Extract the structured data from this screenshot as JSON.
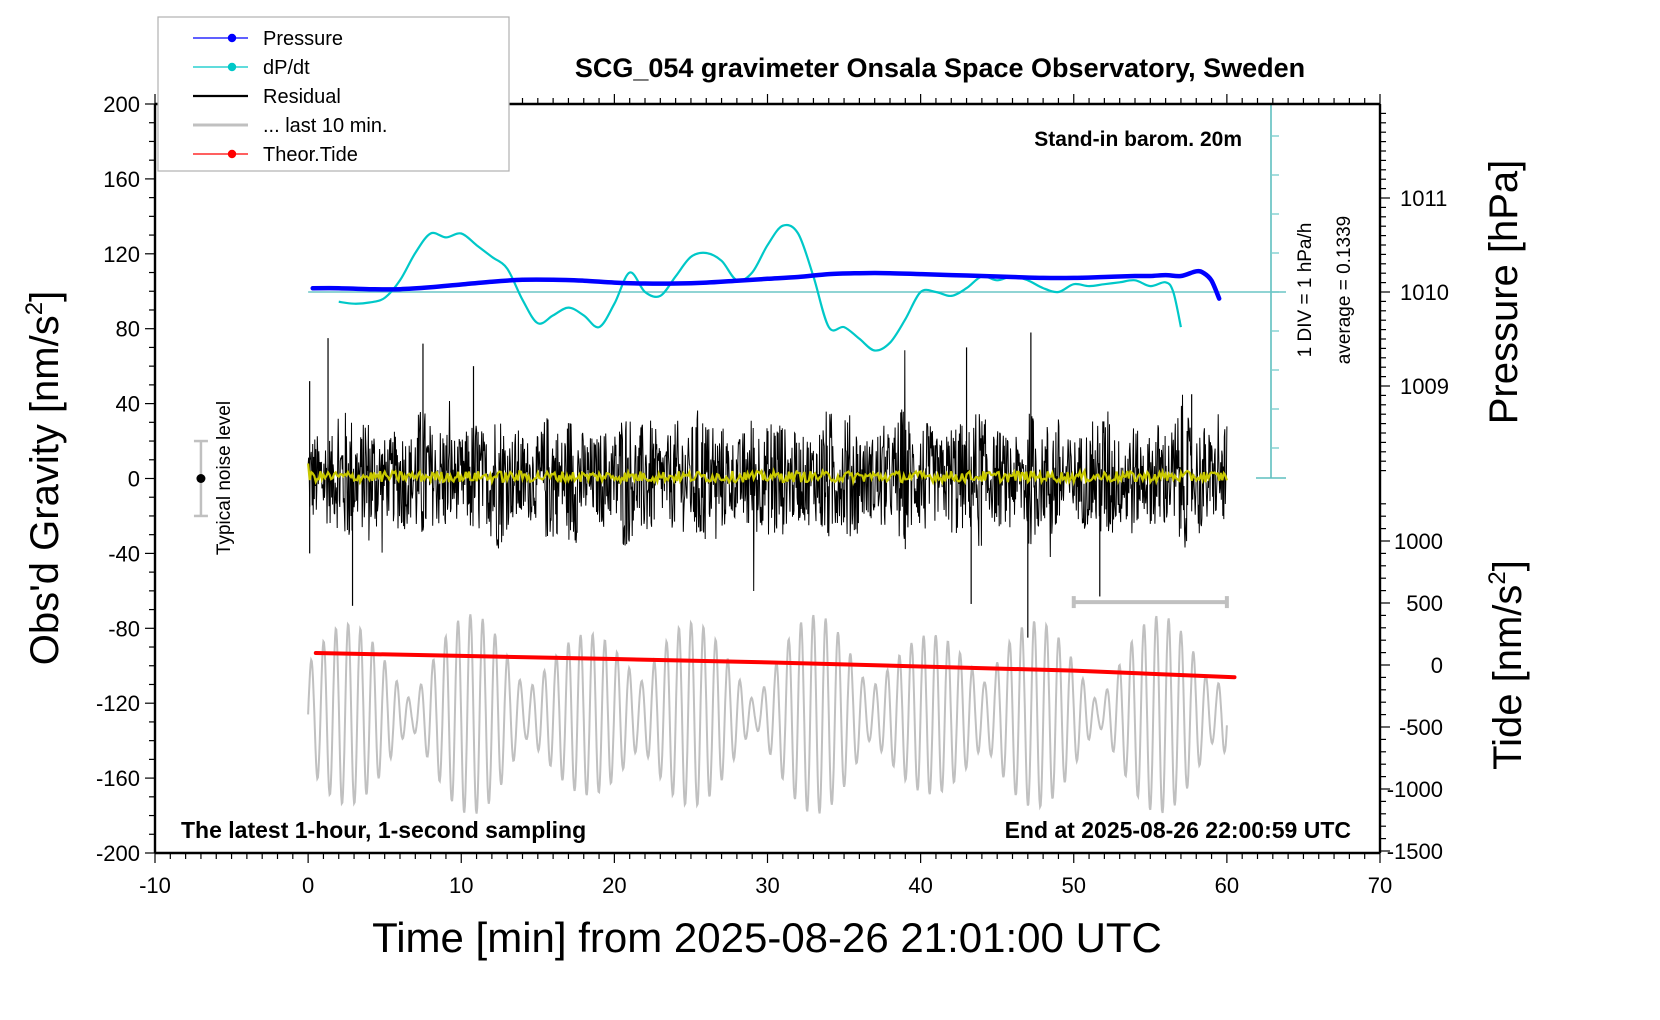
{
  "chart_data": {
    "type": "line",
    "title": "SCG_054 gravimeter Onsala Space Observatory, Sweden",
    "xlabel": "Time [min] from 2025-08-26 21:01:00 UTC",
    "ylabel_left": "Obs'd Gravity [nm/s",
    "ylabel_left_sup": "2",
    "ylabel_right_pressure": "Pressure [hPa]",
    "ylabel_right_tide": "Tide [nm/s",
    "ylabel_right_tide_sup": "2",
    "xlim": [
      -10,
      70
    ],
    "ylim_left": [
      -200,
      200
    ],
    "pressure_axis_range": [
      1008.2,
      1011.9
    ],
    "tide_axis_range": [
      -1500,
      1500
    ],
    "x_ticks": [
      -10,
      0,
      10,
      20,
      30,
      40,
      50,
      60,
      70
    ],
    "x_tick_labels": [
      "-10",
      "0",
      "10",
      "20",
      "30",
      "40",
      "50",
      "60",
      "70"
    ],
    "y_left_ticks": [
      200,
      160,
      120,
      80,
      40,
      0,
      -40,
      -80,
      -120,
      -160,
      -200
    ],
    "y_left_tick_labels": [
      "200",
      "160",
      "120",
      "80",
      "40",
      "0",
      "-40",
      "-80",
      "-120",
      "-160",
      "-200"
    ],
    "pressure_ticks": [
      1011,
      1010,
      1009
    ],
    "pressure_tick_labels": [
      "1011",
      "1010",
      "1009"
    ],
    "tide_ticks": [
      1000,
      500,
      0,
      -500,
      -1000,
      -1500
    ],
    "tide_tick_labels": [
      "1000",
      "500",
      "0",
      "-500",
      "-1000",
      "-1500"
    ],
    "legend": {
      "placement": "top-left",
      "entries": [
        {
          "label": "Pressure",
          "color": "#0000ff",
          "marker": "dot"
        },
        {
          "label": "dP/dt",
          "color": "#00c8c8",
          "marker": "dot"
        },
        {
          "label": "Residual",
          "color": "#000000",
          "marker": "line"
        },
        {
          "label": "... last 10 min.",
          "color": "#c0c0c0",
          "marker": "line"
        },
        {
          "label": "Theor.Tide",
          "color": "#ff0000",
          "marker": "dot"
        }
      ]
    },
    "annotations": {
      "barometer": "Stand-in barom. 20m",
      "div_note": "1 DIV = 1 hPa/h",
      "average_note": "average = 0.1339",
      "noise_label": "Typical noise level",
      "bottom_left": "The latest 1-hour, 1-second sampling",
      "bottom_right": "End at 2025-08-26 22:00:59 UTC"
    },
    "noise_level": {
      "x": -7,
      "center": 0,
      "half_range": 20
    },
    "last_10_min_bar": {
      "x_start": 50,
      "x_end": 60,
      "y": -66
    },
    "grid": false,
    "series": [
      {
        "name": "Pressure",
        "axis": "pressure",
        "unit": "hPa",
        "color": "#0000ff",
        "x": [
          0.3,
          2,
          4,
          6,
          8,
          10,
          12,
          14,
          16,
          18,
          20,
          22,
          24,
          26,
          28,
          30,
          32,
          34,
          36,
          38,
          40,
          42,
          44,
          46,
          48,
          50,
          52,
          54,
          55,
          56,
          57,
          58,
          58.5,
          59,
          59.5
        ],
        "values": [
          1010.04,
          1010.04,
          1010.03,
          1010.03,
          1010.05,
          1010.08,
          1010.11,
          1010.13,
          1010.13,
          1010.12,
          1010.1,
          1010.09,
          1010.09,
          1010.1,
          1010.12,
          1010.14,
          1010.16,
          1010.19,
          1010.2,
          1010.2,
          1010.19,
          1010.18,
          1010.17,
          1010.16,
          1010.15,
          1010.15,
          1010.16,
          1010.17,
          1010.17,
          1010.18,
          1010.17,
          1010.22,
          1010.2,
          1010.12,
          1009.93
        ]
      },
      {
        "name": "dP/dt",
        "axis": "dpdt",
        "unit": "hPa/h (1 DIV = 1 hPa/h)",
        "color": "#00c8c8",
        "baseline_pressure_level": 1010,
        "x": [
          2,
          3,
          4,
          5,
          6,
          7,
          8,
          9,
          10,
          11,
          12,
          13,
          14,
          15,
          16,
          17,
          18,
          19,
          20,
          21,
          22,
          23,
          24,
          25,
          26,
          27,
          28,
          29,
          30,
          31,
          32,
          33,
          34,
          35,
          36,
          37,
          38,
          39,
          40,
          41,
          42,
          43,
          44,
          45,
          46,
          47,
          48,
          49,
          50,
          51,
          52,
          53,
          54,
          55,
          56,
          56.5,
          57
        ],
        "values": [
          -0.25,
          -0.3,
          -0.27,
          -0.15,
          0.3,
          1.0,
          1.5,
          1.4,
          1.5,
          1.2,
          0.9,
          0.6,
          -0.2,
          -0.8,
          -0.6,
          -0.4,
          -0.6,
          -0.9,
          -0.3,
          0.5,
          0.0,
          -0.1,
          0.4,
          0.9,
          1.0,
          0.8,
          0.3,
          0.5,
          1.2,
          1.7,
          1.5,
          0.4,
          -0.9,
          -0.9,
          -1.2,
          -1.5,
          -1.3,
          -0.7,
          0.0,
          0.0,
          -0.1,
          0.1,
          0.4,
          0.3,
          0.4,
          0.3,
          0.1,
          0.0,
          0.2,
          0.15,
          0.2,
          0.25,
          0.3,
          0.15,
          0.25,
          0.0,
          -0.9
        ]
      },
      {
        "name": "Residual",
        "axis": "gravity",
        "unit": "nm/s^2",
        "color": "#000000",
        "x_range": [
          0,
          60
        ],
        "sampling_s": 1,
        "envelope_minmax": [
          -85,
          78
        ],
        "typical_amplitude": 30
      },
      {
        "name": "Residual smoothed",
        "axis": "gravity",
        "color": "#c8c800",
        "x_range": [
          0,
          60
        ],
        "typical_amplitude": 3
      },
      {
        "name": "... last 10 min.",
        "axis": "gravity",
        "unit": "nm/s^2",
        "color": "#c0c0c0",
        "x_range": [
          0,
          60
        ],
        "center": -126,
        "envelope_minmax": [
          -185,
          -67
        ]
      },
      {
        "name": "Theor.Tide",
        "axis": "tide",
        "unit": "nm/s^2",
        "color": "#ff0000",
        "x": [
          0.5,
          10,
          20,
          30,
          40,
          50,
          60.5
        ],
        "values": [
          97,
          73,
          48,
          21,
          -12,
          -45,
          -98
        ]
      }
    ]
  }
}
